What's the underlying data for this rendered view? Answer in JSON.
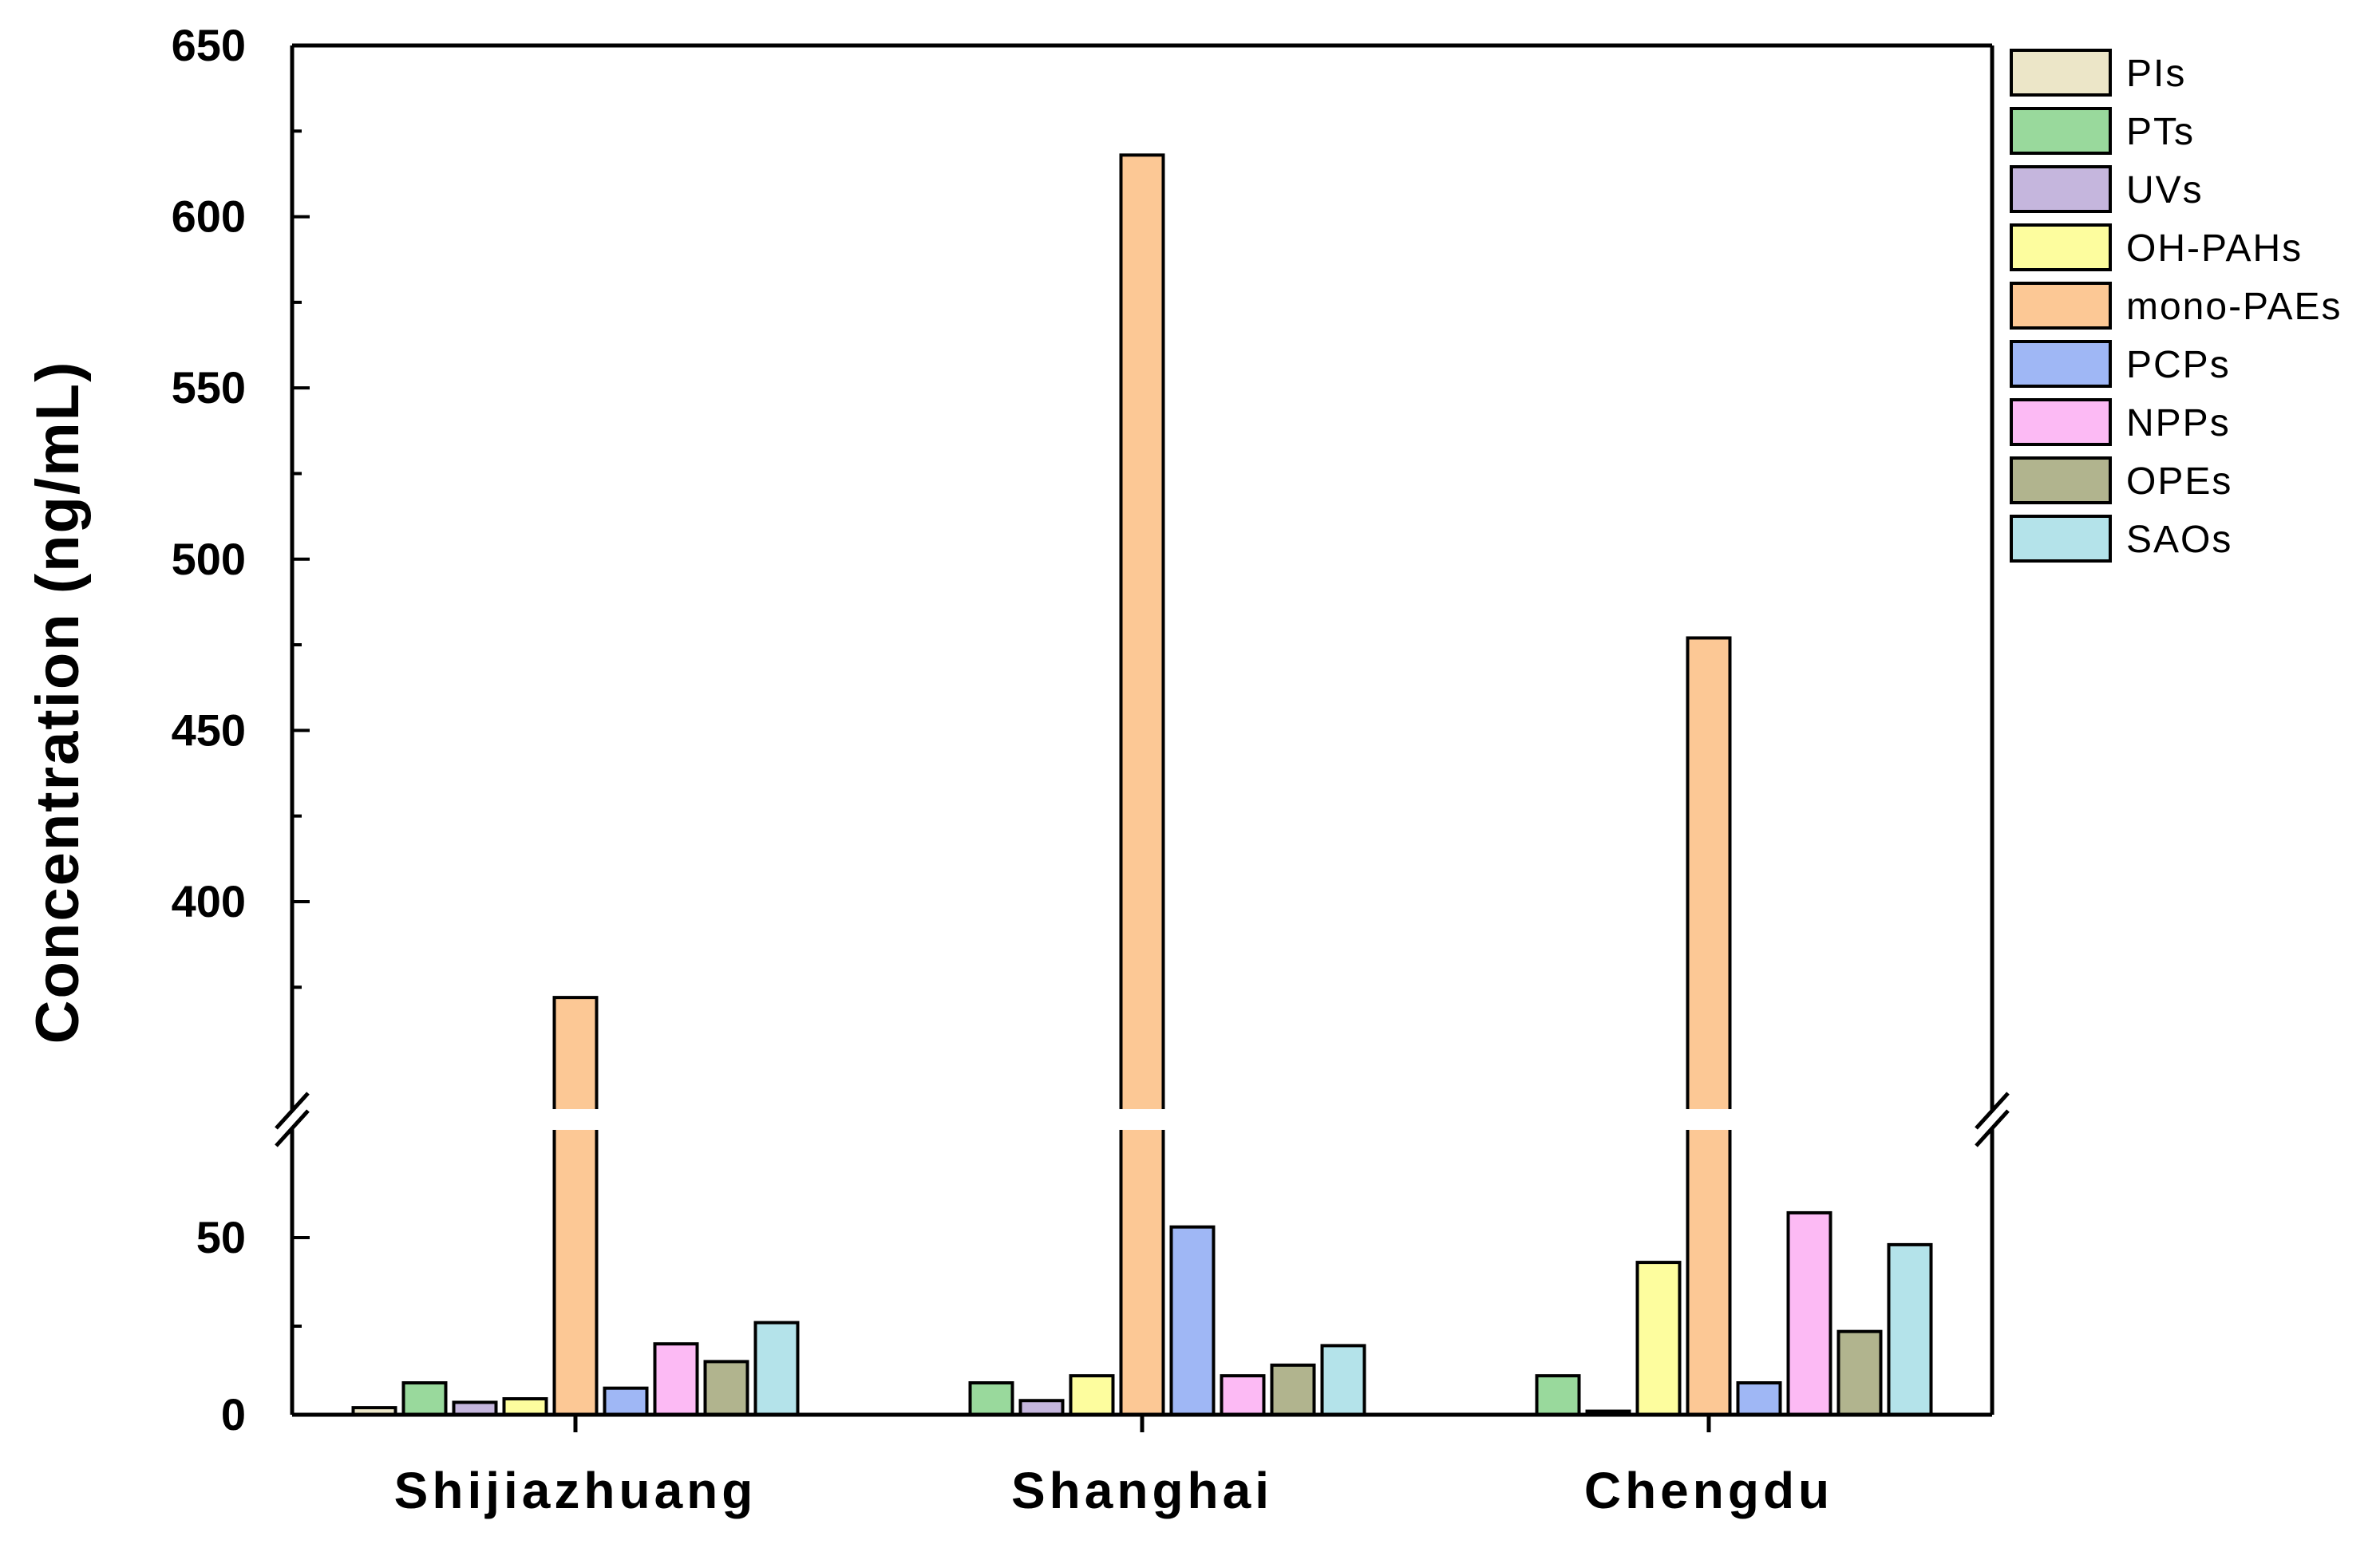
{
  "chart_data": {
    "type": "bar",
    "title": "",
    "xlabel": "",
    "ylabel": "Concentration (ng/mL)",
    "categories": [
      "Shijiazhuang",
      "Shanghai",
      "Chengdu"
    ],
    "y_axis_break": {
      "lower_range": [
        0,
        75
      ],
      "upper_range": [
        345,
        650
      ]
    },
    "y_ticks_lower": [
      0,
      50
    ],
    "y_ticks_upper": [
      400,
      450,
      500,
      550,
      600,
      650
    ],
    "legend_position": "right",
    "grid": false,
    "series": [
      {
        "name": "PIs",
        "color": "#ece6c8",
        "values": [
          2,
          0,
          0
        ]
      },
      {
        "name": "PTs",
        "color": "#99d99c",
        "values": [
          9,
          9,
          11
        ]
      },
      {
        "name": "UVs",
        "color": "#c5b6dd",
        "values": [
          3.5,
          4,
          1
        ]
      },
      {
        "name": "OH-PAHs",
        "color": "#fdfd9e",
        "values": [
          4.5,
          11,
          43
        ]
      },
      {
        "name": "mono-PAEs",
        "color": "#fcc895",
        "values": [
          372,
          618,
          477
        ]
      },
      {
        "name": "PCPs",
        "color": "#9fb7f5",
        "values": [
          7.5,
          53,
          9
        ]
      },
      {
        "name": "NPPs",
        "color": "#fcbaf4",
        "values": [
          20,
          11,
          57
        ]
      },
      {
        "name": "OPEs",
        "color": "#b1b48e",
        "values": [
          15,
          14,
          23.5
        ]
      },
      {
        "name": "SAOs",
        "color": "#b4e3ea",
        "values": [
          26,
          19.5,
          48
        ]
      }
    ]
  }
}
